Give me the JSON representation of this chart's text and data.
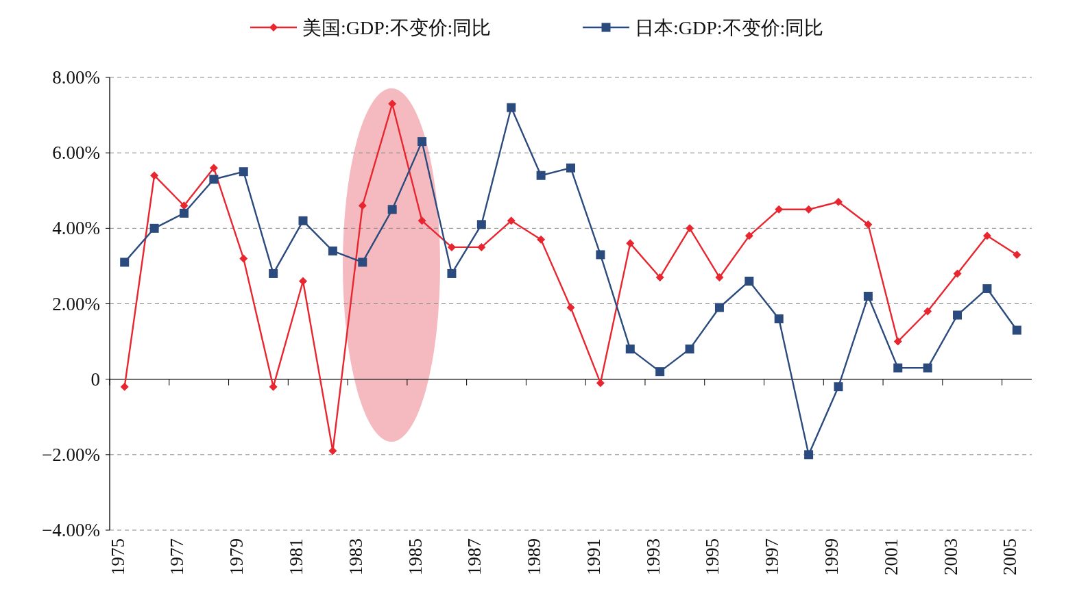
{
  "chart_data": {
    "type": "line",
    "categories": [
      "1975",
      null,
      "1977",
      null,
      "1979",
      null,
      "1981",
      null,
      "1983",
      null,
      "1985",
      null,
      "1987",
      null,
      "1989",
      null,
      "1991",
      null,
      "1993",
      null,
      "1995",
      null,
      "1997",
      null,
      "1999",
      null,
      "2001",
      null,
      "2003",
      null,
      "2005"
    ],
    "series": [
      {
        "name": "美国:GDP:不变价:同比",
        "color": "#e8262f",
        "marker": "diamond",
        "values": [
          -0.2,
          5.4,
          4.6,
          5.6,
          3.2,
          -0.2,
          2.6,
          -1.9,
          4.6,
          7.3,
          4.2,
          3.5,
          3.5,
          4.2,
          3.7,
          1.9,
          -0.1,
          3.6,
          2.7,
          4.0,
          2.7,
          3.8,
          4.5,
          4.5,
          4.7,
          4.1,
          1.0,
          1.8,
          2.8,
          3.8,
          3.3
        ]
      },
      {
        "name": "日本:GDP:不变价:同比",
        "color": "#2b4a7d",
        "marker": "square",
        "values": [
          3.1,
          4.0,
          4.4,
          5.3,
          5.5,
          2.8,
          4.2,
          3.4,
          3.1,
          4.5,
          6.3,
          2.8,
          4.1,
          7.2,
          5.4,
          5.6,
          3.3,
          0.8,
          0.2,
          0.8,
          1.9,
          2.6,
          1.6,
          -2.0,
          -0.2,
          2.2,
          0.3,
          0.3,
          1.7,
          2.4,
          1.3
        ]
      }
    ],
    "ylim": [
      -4,
      8
    ],
    "yticks": [
      {
        "value": -4,
        "label": "−4.00%"
      },
      {
        "value": -2,
        "label": "−2.00%"
      },
      {
        "value": 0,
        "label": "0"
      },
      {
        "value": 2,
        "label": "2.00%"
      },
      {
        "value": 4,
        "label": "4.00%"
      },
      {
        "value": 6,
        "label": "6.00%"
      },
      {
        "value": 8,
        "label": "8.00%"
      }
    ],
    "grid": "y",
    "line_style": "solid",
    "legend": "top"
  }
}
